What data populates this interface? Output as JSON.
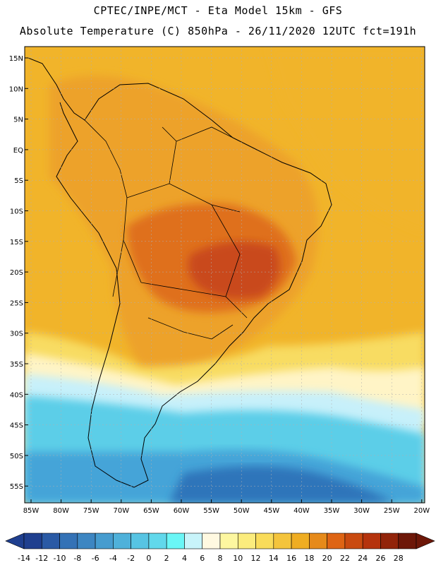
{
  "header": {
    "line1": "CPTEC/INPE/MCT -  Eta Model 15km - GFS",
    "line2": "Absolute Temperature (C) 850hPa - 26/11/2020 12UTC fct=191h"
  },
  "axes": {
    "lat_labels": [
      "15N",
      "10N",
      "5N",
      "EQ",
      "5S",
      "10S",
      "15S",
      "20S",
      "25S",
      "30S",
      "35S",
      "40S",
      "45S",
      "50S",
      "55S"
    ],
    "lon_labels": [
      "85W",
      "80W",
      "75W",
      "70W",
      "65W",
      "60W",
      "55W",
      "50W",
      "45W",
      "40W",
      "35W",
      "30W",
      "25W",
      "20W"
    ]
  },
  "colorbar": {
    "ticks": [
      "-14",
      "-12",
      "-10",
      "-8",
      "-6",
      "-4",
      "-2",
      "0",
      "2",
      "4",
      "6",
      "8",
      "10",
      "12",
      "14",
      "16",
      "18",
      "20",
      "22",
      "24",
      "26",
      "28"
    ],
    "colors": [
      "#1f3f8f",
      "#2a5aa5",
      "#3472b6",
      "#3d86c2",
      "#469ccf",
      "#4fb1da",
      "#57c4e3",
      "#61d8eb",
      "#6af6f6",
      "#c8f4fa",
      "#fff9e1",
      "#fdf7a0",
      "#fbec7d",
      "#f9dc5a",
      "#f4c43c",
      "#efad22",
      "#e68a1a",
      "#de6414",
      "#c94a10",
      "#b5330d",
      "#92240a",
      "#6d1708"
    ]
  },
  "map_colors": {
    "ocean_north": "#f1b42a",
    "warm_land": "#eda22a",
    "hot": "#df6f1c",
    "very_hot": "#c9491a",
    "cool_transition": "#f8dc62",
    "pale": "#fff4c6",
    "cyan_light": "#c7f0fa",
    "cyan": "#5ccee8",
    "blue_mid": "#44a4d8",
    "blue_dark": "#2f74ba"
  }
}
